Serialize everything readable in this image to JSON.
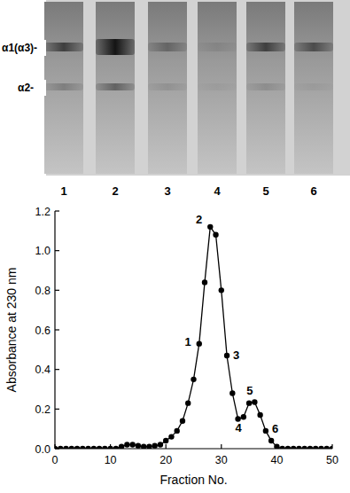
{
  "gel": {
    "band_labels": [
      "α1(α3)-",
      "α2-"
    ],
    "lanes": [
      "1",
      "2",
      "3",
      "4",
      "5",
      "6"
    ]
  },
  "chart_data": {
    "type": "line",
    "x": [
      0,
      1,
      2,
      3,
      4,
      5,
      6,
      7,
      8,
      9,
      10,
      11,
      12,
      13,
      14,
      15,
      16,
      17,
      18,
      19,
      20,
      21,
      22,
      23,
      24,
      25,
      26,
      27,
      28,
      29,
      30,
      31,
      32,
      33,
      34,
      35,
      36,
      37,
      38,
      39,
      40,
      41,
      42,
      43,
      44,
      45,
      46,
      47,
      48,
      49,
      50
    ],
    "series": [
      {
        "color": "#000000",
        "marker": "circle",
        "line_style": "solid",
        "values": [
          0,
          0,
          0,
          0,
          0,
          0,
          0,
          0,
          0,
          0,
          0,
          0,
          0.01,
          0.02,
          0.02,
          0.015,
          0.01,
          0.01,
          0.015,
          0.02,
          0.04,
          0.06,
          0.09,
          0.14,
          0.23,
          0.35,
          0.53,
          0.84,
          1.12,
          1.08,
          0.8,
          0.47,
          0.28,
          0.15,
          0.16,
          0.23,
          0.235,
          0.17,
          0.09,
          0.04,
          0.01,
          0,
          0,
          0,
          0,
          0,
          0,
          0,
          0,
          0,
          0
        ]
      }
    ],
    "xlim": [
      0,
      50
    ],
    "xticks": [
      0,
      10,
      20,
      30,
      40,
      50
    ],
    "ylim": [
      0,
      1.2
    ],
    "yticks": [
      {
        "value": 0,
        "label": "0.0"
      },
      0.2,
      0.4,
      0.6,
      0.8,
      {
        "value": 1,
        "label": "1.0"
      },
      1.2
    ],
    "x_label": "Fraction No.",
    "y_label": "Absorbance at 230 nm",
    "annotations": [
      {
        "text": "1",
        "x": 26
      },
      {
        "text": "2",
        "x": 28
      },
      {
        "text": "3",
        "x": 31
      },
      {
        "text": "4",
        "x": 34
      },
      {
        "text": "5",
        "x": 36
      },
      {
        "text": "6",
        "x": 38
      }
    ],
    "grid": false
  }
}
